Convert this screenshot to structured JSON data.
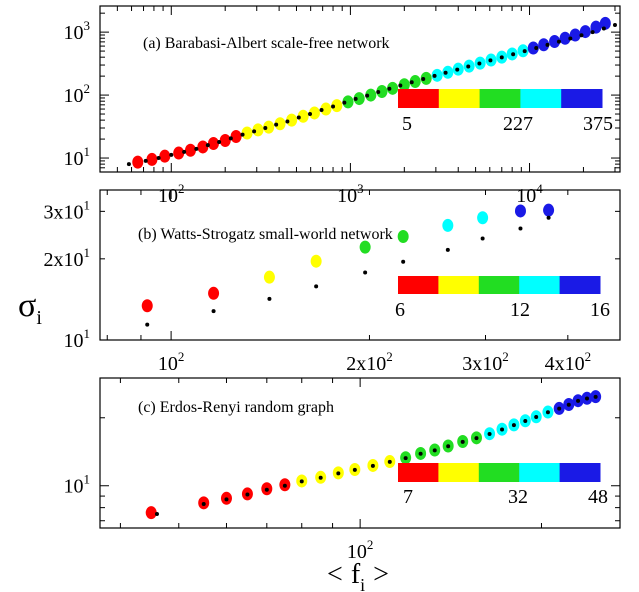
{
  "figure": {
    "ylabel": "σ",
    "ylabel_sub": "i",
    "xlabel_left": "<",
    "xlabel_main": "f",
    "xlabel_sub": "i",
    "xlabel_right": ">"
  },
  "chart_data": [
    {
      "type": "scatter",
      "title": "(a) Barabasi-Albert scale-free network",
      "xscale": "log",
      "yscale": "log",
      "xlim": [
        40,
        32000
      ],
      "ylim": [
        6,
        2600
      ],
      "xticks": [
        {
          "v": 100,
          "base": "10",
          "exp": "2"
        },
        {
          "v": 1000,
          "base": "10",
          "exp": "3"
        },
        {
          "v": 10000,
          "base": "10",
          "exp": "4"
        }
      ],
      "yticks": [
        {
          "v": 10,
          "base": "10",
          "exp": "1"
        },
        {
          "v": 100,
          "base": "10",
          "exp": "2"
        },
        {
          "v": 1000,
          "base": "10",
          "exp": "3"
        }
      ],
      "colorbar": {
        "colors": [
          "#ff0000",
          "#ffff00",
          "#22dd22",
          "#00ffff",
          "#1a1ae6"
        ],
        "labels": [
          "5",
          "227",
          "375"
        ]
      },
      "series": [
        {
          "marker": "colored-circle",
          "points": [
            [
              65,
              8.6
            ],
            [
              78,
              9.5
            ],
            [
              92,
              10.7
            ],
            [
              110,
              12
            ],
            [
              128,
              13.3
            ],
            [
              150,
              15
            ],
            [
              172,
              17
            ],
            [
              200,
              19
            ],
            [
              230,
              22
            ],
            [
              265,
              25
            ],
            [
              305,
              28
            ],
            [
              350,
              31
            ],
            [
              405,
              35
            ],
            [
              470,
              40
            ],
            [
              545,
              46
            ],
            [
              630,
              52
            ],
            [
              730,
              60
            ],
            [
              840,
              68
            ],
            [
              970,
              78
            ],
            [
              1120,
              88
            ],
            [
              1300,
              100
            ],
            [
              1500,
              114
            ],
            [
              1720,
              128
            ],
            [
              2000,
              146
            ],
            [
              2300,
              164
            ],
            [
              2650,
              184
            ],
            [
              3050,
              206
            ],
            [
              3500,
              230
            ],
            [
              4000,
              258
            ],
            [
              4600,
              288
            ],
            [
              5300,
              322
            ],
            [
              6100,
              360
            ],
            [
              7000,
              400
            ],
            [
              8000,
              450
            ],
            [
              9200,
              505
            ],
            [
              10500,
              560
            ],
            [
              12000,
              630
            ],
            [
              13800,
              710
            ],
            [
              15800,
              800
            ],
            [
              18000,
              900
            ],
            [
              20500,
              1020
            ],
            [
              23500,
              1200
            ],
            [
              26500,
              1380
            ]
          ]
        },
        {
          "marker": "black-dot",
          "points": [
            [
              58,
              8
            ],
            [
              72,
              9
            ],
            [
              85,
              10
            ],
            [
              100,
              11.2
            ],
            [
              118,
              12.5
            ],
            [
              138,
              14
            ],
            [
              160,
              16
            ],
            [
              185,
              18
            ],
            [
              215,
              20.5
            ],
            [
              250,
              23.5
            ],
            [
              290,
              26.5
            ],
            [
              335,
              30
            ],
            [
              385,
              34
            ],
            [
              445,
              38
            ],
            [
              515,
              44
            ],
            [
              595,
              50
            ],
            [
              690,
              58
            ],
            [
              800,
              66
            ],
            [
              925,
              76
            ],
            [
              1070,
              87
            ],
            [
              1240,
              98
            ],
            [
              1430,
              112
            ],
            [
              1650,
              126
            ],
            [
              1900,
              142
            ],
            [
              2200,
              160
            ],
            [
              2550,
              180
            ],
            [
              2950,
              202
            ],
            [
              3400,
              226
            ],
            [
              3950,
              254
            ],
            [
              4550,
              284
            ],
            [
              5250,
              318
            ],
            [
              6050,
              356
            ],
            [
              7000,
              398
            ],
            [
              8100,
              446
            ],
            [
              9400,
              500
            ],
            [
              10900,
              560
            ],
            [
              12600,
              628
            ],
            [
              14600,
              706
            ],
            [
              16900,
              792
            ],
            [
              19500,
              890
            ],
            [
              22500,
              1000
            ],
            [
              26000,
              1140
            ],
            [
              30000,
              1300
            ]
          ]
        }
      ]
    },
    {
      "type": "scatter",
      "title": "(b) Watts-Strogatz small-world network",
      "xscale": "log",
      "yscale": "log",
      "xlim": [
        78,
        480
      ],
      "ylim": [
        10,
        36
      ],
      "xticks": [
        {
          "v": 100,
          "base": "10",
          "exp": "2"
        },
        {
          "v": 200,
          "base": "2x10",
          "exp": "2"
        },
        {
          "v": 300,
          "base": "3x10",
          "exp": "2"
        },
        {
          "v": 400,
          "base": "4x10",
          "exp": "2"
        }
      ],
      "yticks": [
        {
          "v": 10,
          "base": "10",
          "exp": "1"
        },
        {
          "v": 20,
          "base": "2x10",
          "exp": "1"
        },
        {
          "v": 30,
          "base": "3x10",
          "exp": "1"
        }
      ],
      "colorbar": {
        "colors": [
          "#ff0000",
          "#ffff00",
          "#22dd22",
          "#00ffff",
          "#1a1ae6"
        ],
        "labels": [
          "6",
          "12",
          "16"
        ]
      },
      "series": [
        {
          "marker": "colored-circle",
          "points": [
            [
              92,
              13.4
            ],
            [
              116,
              14.9
            ],
            [
              141,
              17.1
            ],
            [
              166,
              19.6
            ],
            [
              197,
              22.1
            ],
            [
              225,
              24.2
            ],
            [
              263,
              26.6
            ],
            [
              297,
              28.4
            ],
            [
              339,
              30.1
            ],
            [
              374,
              30.3
            ]
          ]
        },
        {
          "marker": "black-dot",
          "points": [
            [
              92,
              11.4
            ],
            [
              116,
              12.8
            ],
            [
              141,
              14.2
            ],
            [
              166,
              15.8
            ],
            [
              197,
              17.8
            ],
            [
              225,
              19.5
            ],
            [
              263,
              21.6
            ],
            [
              297,
              23.8
            ],
            [
              339,
              25.9
            ],
            [
              374,
              28.4
            ]
          ]
        }
      ]
    },
    {
      "type": "scatter",
      "title": "(c) Erdos-Renyi random graph",
      "xscale": "log",
      "yscale": "log",
      "xlim": [
        37,
        270
      ],
      "ylim": [
        6.5,
        30
      ],
      "xticks": [
        {
          "v": 100,
          "base": "10",
          "exp": "2"
        }
      ],
      "yticks": [
        {
          "v": 10,
          "base": "10",
          "exp": "1"
        }
      ],
      "colorbar": {
        "colors": [
          "#ff0000",
          "#ffff00",
          "#22dd22",
          "#00ffff",
          "#1a1ae6"
        ],
        "labels": [
          "7",
          "32",
          "48"
        ]
      },
      "series": [
        {
          "marker": "colored-circle",
          "points": [
            [
              45,
              7.6
            ],
            [
              55,
              8.4
            ],
            [
              60,
              8.8
            ],
            [
              65,
              9.2
            ],
            [
              70,
              9.7
            ],
            [
              75,
              10.1
            ],
            [
              80,
              10.5
            ],
            [
              86,
              10.9
            ],
            [
              92,
              11.4
            ],
            [
              98,
              11.8
            ],
            [
              105,
              12.3
            ],
            [
              112,
              12.8
            ],
            [
              119,
              13.3
            ],
            [
              126,
              13.9
            ],
            [
              133,
              14.4
            ],
            [
              140,
              15
            ],
            [
              148,
              15.7
            ],
            [
              156,
              16.3
            ],
            [
              164,
              17
            ],
            [
              172,
              17.8
            ],
            [
              180,
              18.6
            ],
            [
              188,
              19.4
            ],
            [
              196,
              20.2
            ],
            [
              205,
              21.2
            ],
            [
              214,
              22
            ],
            [
              222,
              22.9
            ],
            [
              230,
              23.8
            ],
            [
              238,
              24.4
            ],
            [
              246,
              24.8
            ]
          ]
        },
        {
          "marker": "black-dot",
          "points": [
            [
              46,
              7.5
            ],
            [
              55,
              8.3
            ],
            [
              60,
              8.7
            ],
            [
              65,
              9.15
            ],
            [
              70,
              9.6
            ],
            [
              75,
              10
            ],
            [
              80,
              10.45
            ],
            [
              86,
              10.85
            ],
            [
              92,
              11.35
            ],
            [
              98,
              11.75
            ],
            [
              105,
              12.25
            ],
            [
              112,
              12.75
            ],
            [
              119,
              13.25
            ],
            [
              126,
              13.85
            ],
            [
              133,
              14.35
            ],
            [
              140,
              14.95
            ],
            [
              148,
              15.65
            ],
            [
              156,
              16.25
            ],
            [
              164,
              16.95
            ],
            [
              172,
              17.75
            ],
            [
              180,
              18.55
            ],
            [
              188,
              19.35
            ],
            [
              196,
              20.15
            ],
            [
              205,
              21.15
            ],
            [
              214,
              21.95
            ],
            [
              222,
              22.85
            ],
            [
              230,
              23.75
            ],
            [
              238,
              24.35
            ],
            [
              246,
              24.75
            ]
          ]
        }
      ]
    }
  ]
}
